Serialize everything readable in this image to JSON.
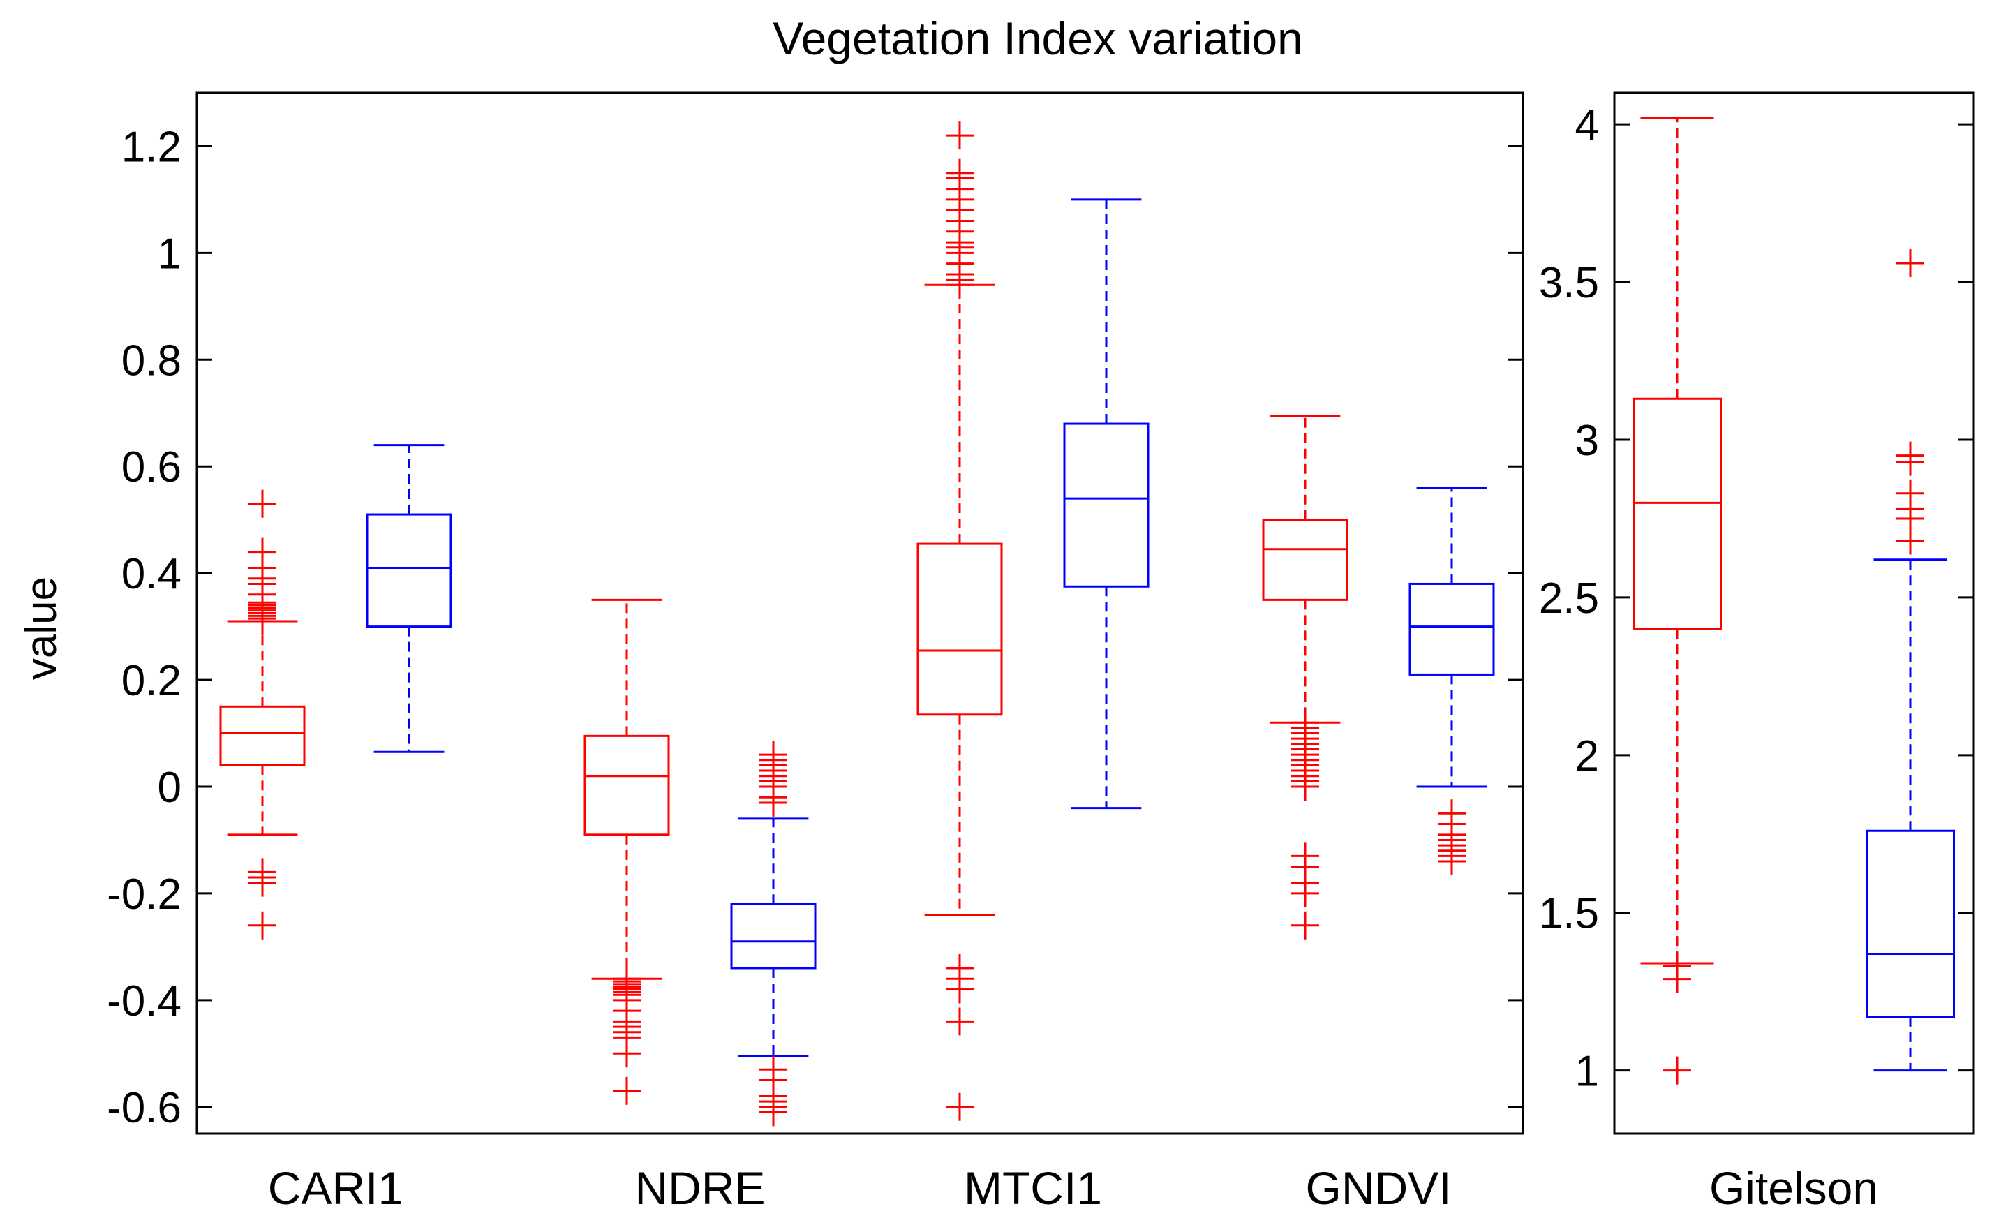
{
  "chart_data": {
    "type": "boxplot",
    "title": "Vegetation Index variation",
    "ylabel": "value",
    "series_colors": [
      "#ff0000",
      "#0000ff"
    ],
    "panels": [
      {
        "ylim": [
          -0.65,
          1.3
        ],
        "yticks": [
          -0.6,
          -0.4,
          -0.2,
          0,
          0.2,
          0.4,
          0.6,
          0.8,
          1,
          1.2
        ],
        "ytick_labels": [
          "-0.6",
          "-0.4",
          "-0.2",
          "0",
          "0.2",
          "0.4",
          "0.6",
          "0.8",
          "1",
          "1.2"
        ],
        "categories": [
          {
            "label": "CARI1",
            "boxes": [
              {
                "whisker_low": -0.09,
                "q1": 0.04,
                "median": 0.1,
                "q3": 0.15,
                "whisker_high": 0.31,
                "outliers": [
                  0.31,
                  0.315,
                  0.32,
                  0.325,
                  0.33,
                  0.335,
                  0.34,
                  0.345,
                  0.36,
                  0.38,
                  0.39,
                  0.41,
                  0.44,
                  0.53,
                  -0.16,
                  -0.17,
                  -0.18,
                  -0.26
                ]
              },
              {
                "whisker_low": 0.065,
                "q1": 0.3,
                "median": 0.41,
                "q3": 0.51,
                "whisker_high": 0.64,
                "outliers": []
              }
            ]
          },
          {
            "label": "NDRE",
            "boxes": [
              {
                "whisker_low": -0.36,
                "q1": -0.09,
                "median": 0.02,
                "q3": 0.095,
                "whisker_high": 0.35,
                "outliers": [
                  -0.36,
                  -0.365,
                  -0.37,
                  -0.375,
                  -0.38,
                  -0.385,
                  -0.39,
                  -0.4,
                  -0.42,
                  -0.44,
                  -0.45,
                  -0.46,
                  -0.47,
                  -0.5,
                  -0.57
                ]
              },
              {
                "whisker_low": -0.505,
                "q1": -0.34,
                "median": -0.29,
                "q3": -0.22,
                "whisker_high": -0.06,
                "outliers": [
                  -0.03,
                  -0.02,
                  0.0,
                  0.01,
                  0.02,
                  0.03,
                  0.04,
                  0.05,
                  0.06,
                  -0.53,
                  -0.55,
                  -0.58,
                  -0.59,
                  -0.6,
                  -0.61
                ]
              }
            ]
          },
          {
            "label": "MTCI1",
            "boxes": [
              {
                "whisker_low": -0.24,
                "q1": 0.135,
                "median": 0.255,
                "q3": 0.455,
                "whisker_high": 0.94,
                "outliers": [
                  0.94,
                  0.95,
                  0.96,
                  0.98,
                  1.0,
                  1.01,
                  1.02,
                  1.04,
                  1.06,
                  1.08,
                  1.1,
                  1.12,
                  1.14,
                  1.15,
                  1.22,
                  -0.34,
                  -0.36,
                  -0.38,
                  -0.44,
                  -0.6
                ]
              },
              {
                "whisker_low": -0.04,
                "q1": 0.375,
                "median": 0.54,
                "q3": 0.68,
                "whisker_high": 1.1,
                "outliers": []
              }
            ]
          },
          {
            "label": "GNDVI",
            "boxes": [
              {
                "whisker_low": 0.12,
                "q1": 0.35,
                "median": 0.445,
                "q3": 0.5,
                "whisker_high": 0.695,
                "outliers": [
                  0.12,
                  0.11,
                  0.1,
                  0.09,
                  0.08,
                  0.07,
                  0.06,
                  0.05,
                  0.04,
                  0.03,
                  0.02,
                  0.01,
                  0.0,
                  -0.13,
                  -0.15,
                  -0.18,
                  -0.2,
                  -0.26
                ]
              },
              {
                "whisker_low": 0.0,
                "q1": 0.21,
                "median": 0.3,
                "q3": 0.38,
                "whisker_high": 0.56,
                "outliers": [
                  -0.05,
                  -0.07,
                  -0.09,
                  -0.1,
                  -0.11,
                  -0.12,
                  -0.13,
                  -0.14
                ]
              }
            ]
          }
        ]
      },
      {
        "ylim": [
          0.8,
          4.1
        ],
        "yticks": [
          1,
          1.5,
          2,
          2.5,
          3,
          3.5,
          4
        ],
        "ytick_labels": [
          "1",
          "1.5",
          "2",
          "2.5",
          "3",
          "3.5",
          "4"
        ],
        "categories": [
          {
            "label": "Gitelson",
            "boxes": [
              {
                "whisker_low": 1.34,
                "q1": 2.4,
                "median": 2.8,
                "q3": 3.13,
                "whisker_high": 4.02,
                "outliers": [
                  1.33,
                  1.29,
                  1.0
                ]
              },
              {
                "whisker_low": 1.0,
                "q1": 1.17,
                "median": 1.37,
                "q3": 1.76,
                "whisker_high": 2.62,
                "outliers": [
                  2.68,
                  2.75,
                  2.78,
                  2.83,
                  2.93,
                  2.95,
                  3.56
                ]
              }
            ]
          }
        ]
      }
    ]
  }
}
